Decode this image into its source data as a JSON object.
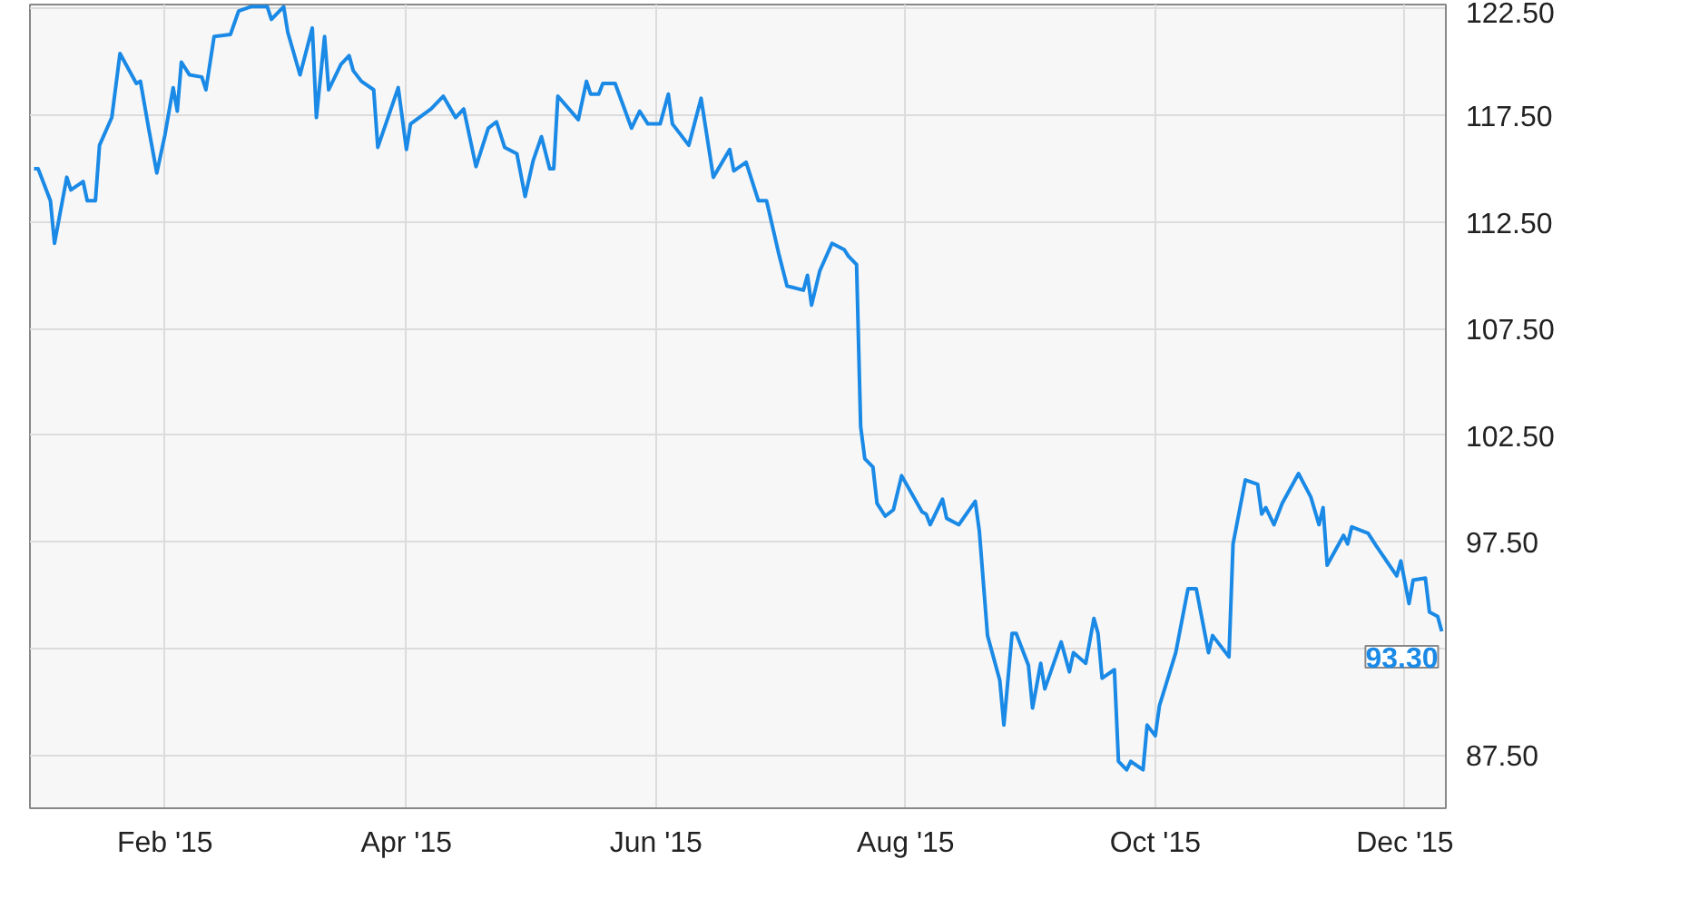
{
  "chart_data": {
    "type": "line",
    "x": [
      "2014-12-31",
      "2015-01-01",
      "2015-01-04",
      "2015-01-05",
      "2015-01-08",
      "2015-01-09",
      "2015-01-12",
      "2015-01-13",
      "2015-01-15",
      "2015-01-16",
      "2015-01-19",
      "2015-01-21",
      "2015-01-25",
      "2015-01-26",
      "2015-01-28",
      "2015-01-30",
      "2015-02-01",
      "2015-02-03",
      "2015-02-04",
      "2015-02-05",
      "2015-02-07",
      "2015-02-10",
      "2015-02-11",
      "2015-02-13",
      "2015-02-17",
      "2015-02-19",
      "2015-02-22",
      "2015-02-26",
      "2015-02-27",
      "2015-03-02",
      "2015-03-03",
      "2015-03-06",
      "2015-03-09",
      "2015-03-10",
      "2015-03-12",
      "2015-03-13",
      "2015-03-16",
      "2015-03-18",
      "2015-03-19",
      "2015-03-21",
      "2015-03-24",
      "2015-03-25",
      "2015-03-30",
      "2015-04-01",
      "2015-04-02",
      "2015-04-07",
      "2015-04-10",
      "2015-04-13",
      "2015-04-15",
      "2015-04-18",
      "2015-04-21",
      "2015-04-23",
      "2015-04-25",
      "2015-04-28",
      "2015-04-30",
      "2015-05-02",
      "2015-05-04",
      "2015-05-06",
      "2015-05-07",
      "2015-05-08",
      "2015-05-13",
      "2015-05-15",
      "2015-05-16",
      "2015-05-18",
      "2015-05-19",
      "2015-05-22",
      "2015-05-26",
      "2015-05-28",
      "2015-05-30",
      "2015-06-02",
      "2015-06-04",
      "2015-06-05",
      "2015-06-09",
      "2015-06-12",
      "2015-06-15",
      "2015-06-19",
      "2015-06-20",
      "2015-06-23",
      "2015-06-26",
      "2015-06-28",
      "2015-07-01",
      "2015-07-03",
      "2015-07-07",
      "2015-07-08",
      "2015-07-09",
      "2015-07-11",
      "2015-07-14",
      "2015-07-17",
      "2015-07-18",
      "2015-07-20",
      "2015-07-21",
      "2015-07-22",
      "2015-07-24",
      "2015-07-25",
      "2015-07-27",
      "2015-07-29",
      "2015-07-31",
      "2015-08-05",
      "2015-08-06",
      "2015-08-07",
      "2015-08-10",
      "2015-08-11",
      "2015-08-14",
      "2015-08-18",
      "2015-08-19",
      "2015-08-21",
      "2015-08-24",
      "2015-08-25",
      "2015-08-27",
      "2015-08-28",
      "2015-08-31",
      "2015-09-01",
      "2015-09-03",
      "2015-09-04",
      "2015-09-08",
      "2015-09-10",
      "2015-09-11",
      "2015-09-14",
      "2015-09-16",
      "2015-09-17",
      "2015-09-18",
      "2015-09-21",
      "2015-09-22",
      "2015-09-24",
      "2015-09-25",
      "2015-09-28",
      "2015-09-29",
      "2015-10-01",
      "2015-10-02",
      "2015-10-06",
      "2015-10-09",
      "2015-10-11",
      "2015-10-14",
      "2015-10-15",
      "2015-10-19",
      "2015-10-20",
      "2015-10-23",
      "2015-10-26",
      "2015-10-27",
      "2015-10-28",
      "2015-10-30",
      "2015-11-01",
      "2015-11-05",
      "2015-11-08",
      "2015-11-10",
      "2015-11-11",
      "2015-11-12",
      "2015-11-16",
      "2015-11-17",
      "2015-11-18",
      "2015-11-22",
      "2015-11-24",
      "2015-11-29",
      "2015-11-30",
      "2015-12-02",
      "2015-12-03",
      "2015-12-06",
      "2015-12-07",
      "2015-12-09",
      "2015-12-10"
    ],
    "series": [
      {
        "color": "#1a8ae6",
        "values": [
          115.0,
          115.0,
          113.5,
          111.5,
          114.6,
          114.0,
          114.4,
          113.5,
          113.5,
          116.1,
          117.4,
          120.4,
          119.0,
          119.1,
          116.9,
          114.8,
          116.6,
          118.8,
          117.7,
          120.0,
          119.4,
          119.3,
          118.7,
          121.2,
          121.3,
          122.4,
          122.6,
          122.6,
          122.0,
          122.6,
          121.4,
          119.4,
          121.6,
          117.4,
          121.2,
          118.7,
          119.9,
          120.3,
          119.6,
          119.1,
          118.7,
          116.0,
          118.8,
          115.9,
          117.1,
          117.8,
          118.4,
          117.4,
          117.8,
          115.1,
          116.9,
          117.2,
          116.0,
          115.7,
          113.7,
          115.4,
          116.5,
          115.0,
          115.0,
          118.4,
          117.3,
          119.1,
          118.5,
          118.5,
          119.0,
          119.0,
          116.9,
          117.7,
          117.1,
          117.1,
          118.5,
          117.1,
          116.1,
          118.3,
          114.6,
          115.9,
          114.9,
          115.3,
          113.5,
          113.5,
          111.0,
          109.5,
          109.3,
          110.0,
          108.6,
          110.2,
          111.5,
          111.2,
          110.9,
          110.5,
          102.9,
          101.4,
          101.0,
          99.3,
          98.7,
          99.0,
          100.6,
          98.9,
          98.8,
          98.3,
          99.5,
          98.6,
          98.3,
          99.4,
          98.0,
          93.1,
          91.0,
          88.9,
          93.2,
          93.2,
          91.7,
          89.7,
          91.8,
          90.6,
          92.8,
          91.4,
          92.3,
          91.8,
          93.9,
          93.2,
          91.1,
          91.5,
          87.2,
          86.8,
          87.2,
          86.8,
          88.9,
          88.4,
          89.8,
          92.3,
          95.3,
          95.3,
          92.3,
          93.1,
          92.1,
          97.4,
          100.4,
          100.2,
          98.8,
          99.1,
          98.3,
          99.3,
          100.7,
          99.6,
          98.3,
          99.1,
          96.4,
          97.8,
          97.4,
          98.2,
          97.9,
          97.3,
          95.9,
          96.6,
          94.6,
          95.7,
          95.8,
          94.2,
          94.0,
          93.3
        ]
      }
    ],
    "xlim": [
      "2014-12-30",
      "2015-12-11"
    ],
    "xticks": [
      {
        "value": "2015-02-01",
        "label": "Feb '15"
      },
      {
        "value": "2015-04-01",
        "label": "Apr '15"
      },
      {
        "value": "2015-06-01",
        "label": "Jun '15"
      },
      {
        "value": "2015-08-01",
        "label": "Aug '15"
      },
      {
        "value": "2015-10-01",
        "label": "Oct '15"
      },
      {
        "value": "2015-12-01",
        "label": "Dec '15"
      }
    ],
    "ylim": [
      85.0,
      122.7
    ],
    "yticks": [
      {
        "value": 87.5,
        "label": "87.50"
      },
      {
        "value": 92.5,
        "label": null
      },
      {
        "value": 97.5,
        "label": "97.50"
      },
      {
        "value": 102.5,
        "label": "102.50"
      },
      {
        "value": 107.5,
        "label": "107.50"
      },
      {
        "value": 112.5,
        "label": "112.50"
      },
      {
        "value": 117.5,
        "label": "117.50"
      },
      {
        "value": 122.5,
        "label": "122.50"
      }
    ],
    "grid": true,
    "annotations": [
      {
        "text": "93.30",
        "x": "2015-12-10",
        "y": 93.3
      }
    ]
  }
}
